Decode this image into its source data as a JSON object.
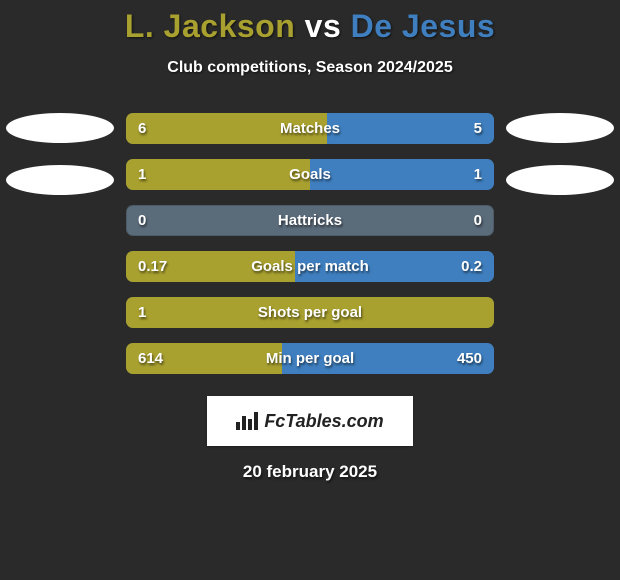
{
  "title": {
    "player1": "L. Jackson",
    "vs": "vs",
    "player2": "De Jesus",
    "player1_color": "#a8a02f",
    "vs_color": "#ffffff",
    "player2_color": "#3f7fbf"
  },
  "subtitle": "Club competitions, Season 2024/2025",
  "colors": {
    "player1_bar": "#a8a02f",
    "player2_bar": "#3f7fbf",
    "row_bg": "#5a6b7a",
    "background": "#2a2a2a",
    "oval": "#ffffff"
  },
  "stats": [
    {
      "label": "Matches",
      "left_val": "6",
      "right_val": "5",
      "left_pct": 54.5,
      "right_pct": 45.5
    },
    {
      "label": "Goals",
      "left_val": "1",
      "right_val": "1",
      "left_pct": 50.0,
      "right_pct": 50.0
    },
    {
      "label": "Hattricks",
      "left_val": "0",
      "right_val": "0",
      "left_pct": 0.0,
      "right_pct": 0.0
    },
    {
      "label": "Goals per match",
      "left_val": "0.17",
      "right_val": "0.2",
      "left_pct": 46.0,
      "right_pct": 54.0
    },
    {
      "label": "Shots per goal",
      "left_val": "1",
      "right_val": "",
      "left_pct": 100.0,
      "right_pct": 0.0
    },
    {
      "label": "Min per goal",
      "left_val": "614",
      "right_val": "450",
      "left_pct": 42.3,
      "right_pct": 57.7
    }
  ],
  "logo_text": "FcTables.com",
  "date": "20 february 2025",
  "side_ovals": {
    "left_count": 2,
    "right_count": 2
  }
}
